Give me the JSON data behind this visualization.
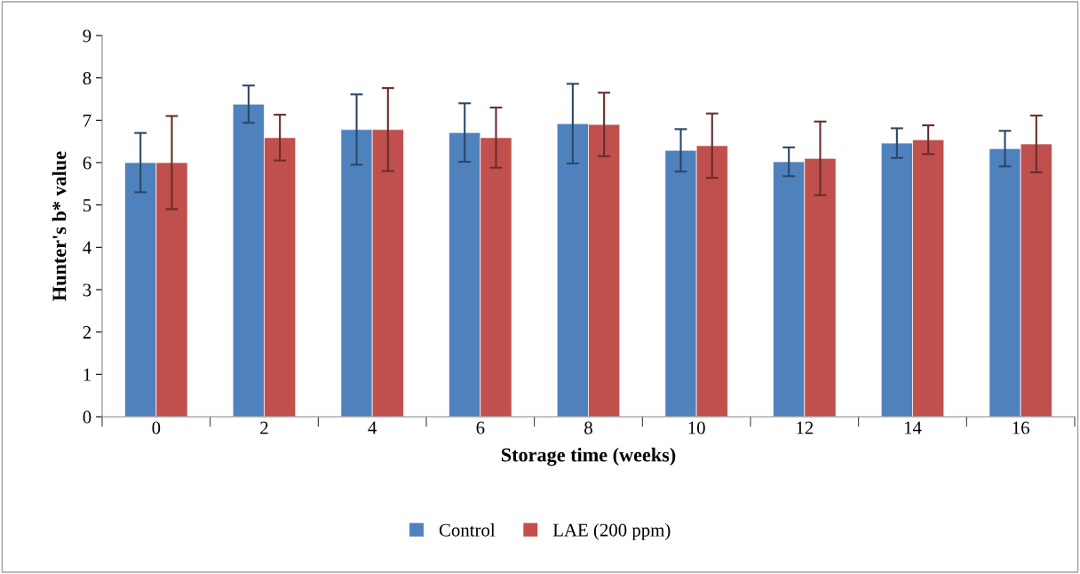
{
  "chart_data": {
    "type": "bar",
    "xlabel": "Storage time (weeks)",
    "ylabel": "Hunter's b* value",
    "categories": [
      "0",
      "2",
      "4",
      "6",
      "8",
      "10",
      "12",
      "14",
      "16"
    ],
    "series": [
      {
        "name": "Control",
        "color": "#4f81bd",
        "values": [
          6.0,
          7.38,
          6.78,
          6.71,
          6.92,
          6.29,
          6.02,
          6.46,
          6.33
        ],
        "errors": [
          0.7,
          0.44,
          0.83,
          0.69,
          0.94,
          0.5,
          0.34,
          0.35,
          0.42
        ]
      },
      {
        "name": "LAE (200 ppm)",
        "color": "#c0504d",
        "values": [
          6.0,
          6.59,
          6.78,
          6.59,
          6.9,
          6.4,
          6.1,
          6.54,
          6.44
        ],
        "errors": [
          1.1,
          0.54,
          0.98,
          0.71,
          0.75,
          0.76,
          0.87,
          0.34,
          0.67
        ]
      }
    ],
    "ylim": [
      0,
      9
    ],
    "yticks": [
      0,
      1,
      2,
      3,
      4,
      5,
      6,
      7,
      8,
      9
    ],
    "grid": false,
    "legend": "bottom"
  }
}
